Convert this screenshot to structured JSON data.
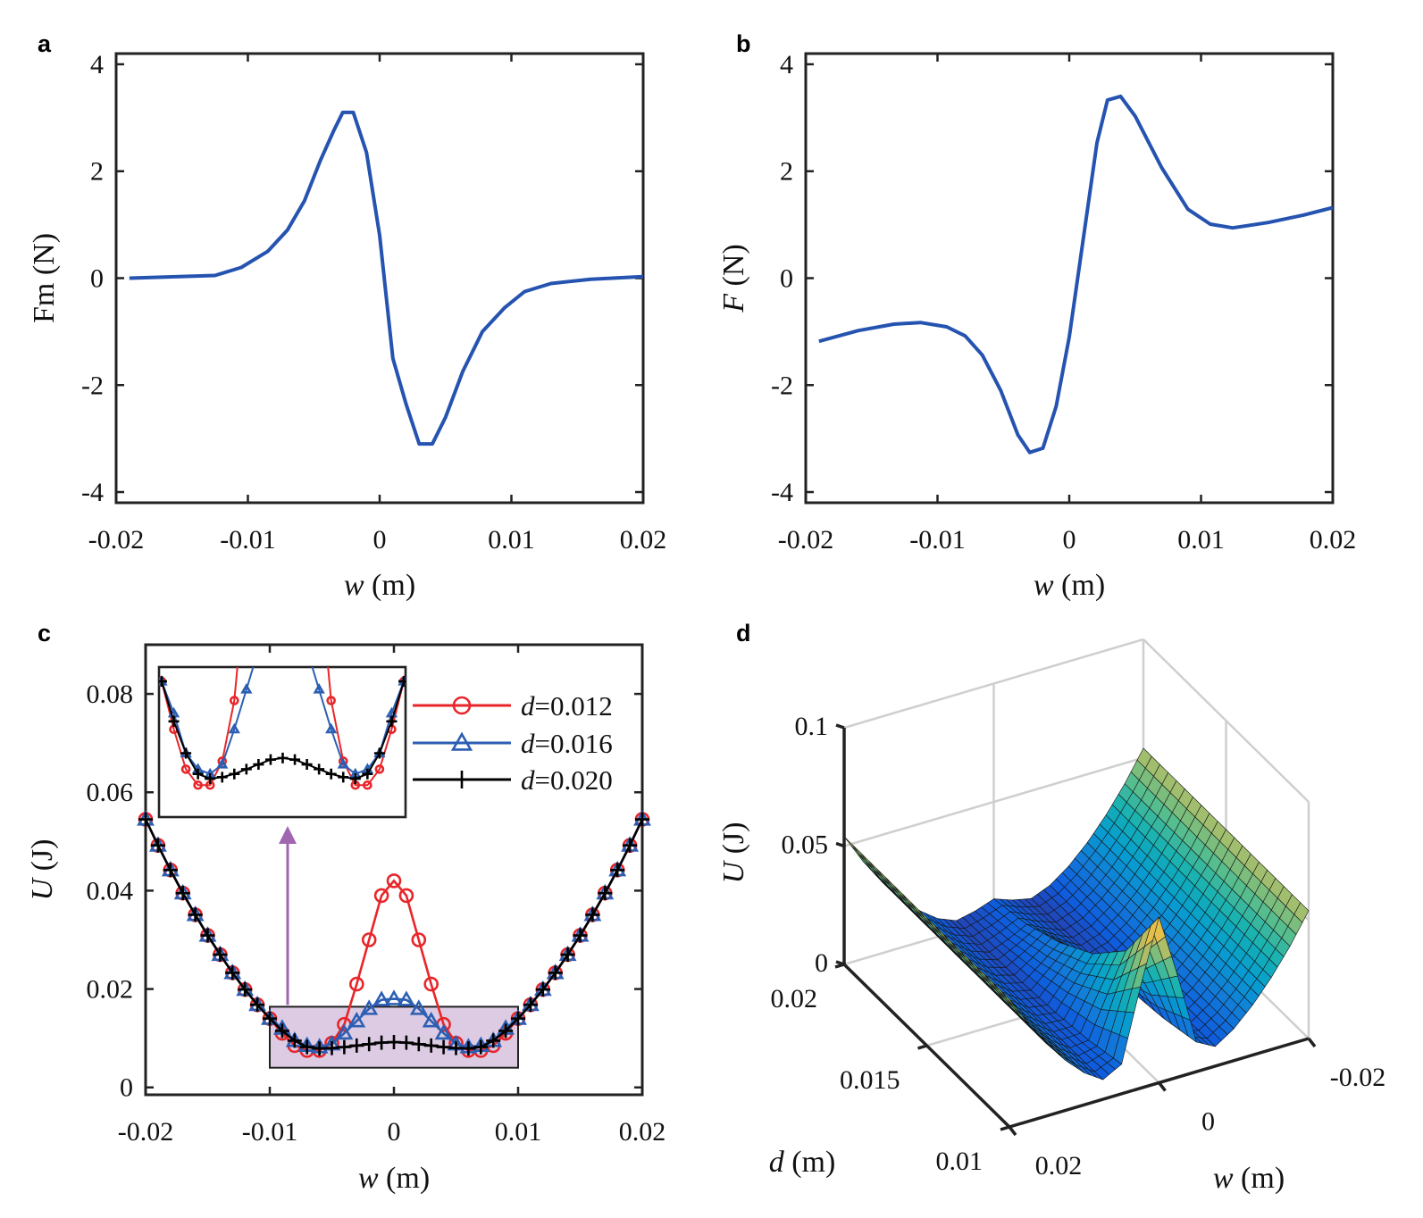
{
  "panel_letters": [
    "a",
    "b",
    "c",
    "d"
  ],
  "chart_data": [
    {
      "panel": "a",
      "type": "line",
      "xlabel": "w (m)",
      "ylabel": "Fm (N)",
      "xlim": [
        -0.02,
        0.02
      ],
      "ylim": [
        -4.2,
        4.2
      ],
      "grid": false,
      "xticks": [
        -0.02,
        -0.01,
        0,
        0.01,
        0.02
      ],
      "xtick_labels": [
        "-0.02",
        "-0.01",
        "0",
        "0.01",
        "0.02"
      ],
      "yticks": [
        -4,
        -2,
        0,
        2,
        4
      ],
      "ytick_labels": [
        "-4",
        "-2",
        "0",
        "2",
        "4"
      ],
      "series": [
        {
          "color": "#2553b0",
          "x": [
            -0.019,
            -0.0125,
            -0.0105,
            -0.0085,
            -0.007,
            -0.0057,
            -0.0045,
            -0.0035,
            -0.0028,
            -0.002,
            -0.001,
            0,
            0.001,
            0.002,
            0.003,
            0.004,
            0.005,
            0.0063,
            0.0078,
            0.0095,
            0.011,
            0.013,
            0.016,
            0.02
          ],
          "y": [
            0,
            0.05,
            0.2,
            0.5,
            0.9,
            1.45,
            2.2,
            2.75,
            3.1,
            3.1,
            2.35,
            0.8,
            -1.5,
            -2.35,
            -3.1,
            -3.1,
            -2.6,
            -1.75,
            -1.0,
            -0.55,
            -0.25,
            -0.1,
            -0.02,
            0.03
          ]
        }
      ]
    },
    {
      "panel": "b",
      "type": "line",
      "xlabel": "w (m)",
      "ylabel": "F (N)",
      "xlim": [
        -0.02,
        0.02
      ],
      "ylim": [
        -4.2,
        4.2
      ],
      "grid": false,
      "xticks": [
        -0.02,
        -0.01,
        0,
        0.01,
        0.02
      ],
      "xtick_labels": [
        "-0.02",
        "-0.01",
        "0",
        "0.01",
        "0.02"
      ],
      "yticks": [
        -4,
        -2,
        0,
        2,
        4
      ],
      "ytick_labels": [
        "-4",
        "-2",
        "0",
        "2",
        "4"
      ],
      "series": [
        {
          "color": "#2553b0",
          "x": [
            -0.019,
            -0.016,
            -0.0133,
            -0.0113,
            -0.0093,
            -0.0079,
            -0.0066,
            -0.0052,
            -0.0039,
            -0.003,
            -0.002,
            -0.001,
            0,
            0.001,
            0.0021,
            0.0029,
            0.0039,
            0.005,
            0.007,
            0.009,
            0.0107,
            0.0124,
            0.0151,
            0.0178,
            0.02
          ],
          "y": [
            -1.18,
            -0.98,
            -0.86,
            -0.83,
            -0.91,
            -1.08,
            -1.44,
            -2.1,
            -2.93,
            -3.26,
            -3.18,
            -2.4,
            -1.1,
            0.63,
            2.53,
            3.33,
            3.4,
            3.03,
            2.07,
            1.29,
            1.01,
            0.94,
            1.04,
            1.18,
            1.32
          ]
        }
      ]
    },
    {
      "panel": "c",
      "type": "line",
      "xlabel": "w (m)",
      "ylabel": "U (J)",
      "xlim": [
        -0.02,
        0.02
      ],
      "ylim": [
        -0.0015,
        0.09
      ],
      "grid": false,
      "xticks": [
        -0.02,
        -0.01,
        0,
        0.01,
        0.02
      ],
      "xtick_labels": [
        "-0.02",
        "-0.01",
        "0",
        "0.01",
        "0.02"
      ],
      "yticks": [
        0,
        0.02,
        0.04,
        0.06,
        0.08
      ],
      "ytick_labels": [
        "0",
        "0.02",
        "0.04",
        "0.06",
        "0.08"
      ],
      "legend_position": "top-right",
      "x": [
        -0.02,
        -0.019,
        -0.018,
        -0.017,
        -0.016,
        -0.015,
        -0.014,
        -0.013,
        -0.012,
        -0.011,
        -0.01,
        -0.009,
        -0.008,
        -0.007,
        -0.006,
        -0.005,
        -0.004,
        -0.003,
        -0.002,
        -0.001,
        0,
        0.001,
        0.002,
        0.003,
        0.004,
        0.005,
        0.006,
        0.007,
        0.008,
        0.009,
        0.01,
        0.011,
        0.012,
        0.013,
        0.014,
        0.015,
        0.016,
        0.017,
        0.018,
        0.019,
        0.02
      ],
      "series": [
        {
          "name": "d=0.012",
          "color": "#e8262a",
          "marker": "circle",
          "y": [
            0.0545,
            0.0492,
            0.0442,
            0.0395,
            0.0351,
            0.0309,
            0.027,
            0.0233,
            0.0199,
            0.0168,
            0.014,
            0.011,
            0.0085,
            0.0075,
            0.0075,
            0.009,
            0.0128,
            0.021,
            0.03,
            0.039,
            0.042,
            0.039,
            0.03,
            0.021,
            0.0128,
            0.009,
            0.0075,
            0.0075,
            0.0085,
            0.011,
            0.014,
            0.0168,
            0.0199,
            0.0233,
            0.027,
            0.0309,
            0.0351,
            0.0395,
            0.0442,
            0.0492,
            0.0545
          ]
        },
        {
          "name": "d=0.016",
          "color": "#2c5fb3",
          "marker": "triangle",
          "y": [
            0.0545,
            0.0492,
            0.0442,
            0.0395,
            0.0351,
            0.0309,
            0.027,
            0.0233,
            0.0199,
            0.0168,
            0.014,
            0.012,
            0.0095,
            0.0085,
            0.0082,
            0.0088,
            0.011,
            0.0135,
            0.016,
            0.0178,
            0.018,
            0.0178,
            0.016,
            0.0135,
            0.011,
            0.0088,
            0.0082,
            0.0085,
            0.0095,
            0.012,
            0.014,
            0.0168,
            0.0199,
            0.0233,
            0.027,
            0.0309,
            0.0351,
            0.0395,
            0.0442,
            0.0492,
            0.0545
          ]
        },
        {
          "name": "d=0.020",
          "color": "#000000",
          "marker": "plus",
          "y": [
            0.0545,
            0.0492,
            0.0442,
            0.0395,
            0.0351,
            0.0309,
            0.027,
            0.0233,
            0.0199,
            0.0168,
            0.014,
            0.0115,
            0.0095,
            0.0082,
            0.0079,
            0.008,
            0.0082,
            0.0085,
            0.0088,
            0.0091,
            0.0092,
            0.0091,
            0.0088,
            0.0085,
            0.0082,
            0.008,
            0.0079,
            0.0082,
            0.0095,
            0.0115,
            0.014,
            0.0168,
            0.0199,
            0.0233,
            0.027,
            0.0309,
            0.0351,
            0.0395,
            0.0442,
            0.0492,
            0.0545
          ]
        }
      ],
      "zoom_region": {
        "xlim": [
          -0.01,
          0.01
        ],
        "ylim": [
          0.004,
          0.0164
        ],
        "fill": "#dccbe3",
        "arrow_color": "#a066b0"
      },
      "inset": {
        "xlim": [
          -0.01,
          0.01
        ],
        "ylim": [
          0.0055,
          0.0149
        ]
      }
    },
    {
      "panel": "d",
      "type": "surface",
      "xlabel": "w (m)",
      "ylabel": "d (m)",
      "zlabel": "U (J)",
      "zlim": [
        0,
        0.1
      ],
      "grid": true,
      "colormap": "parula",
      "clim": [
        0,
        0.07
      ],
      "wticks": [
        0.02,
        0,
        -0.02
      ],
      "wtick_labels": [
        "0.02",
        "0",
        "-0.02"
      ],
      "dticks": [
        0.02,
        0.015,
        0.01
      ],
      "dtick_labels": [
        "0.02",
        "0.015",
        "0.01"
      ],
      "zticks": [
        0,
        0.05,
        0.1
      ],
      "ztick_labels": [
        "0",
        "0.05",
        "0.1"
      ],
      "w": [
        -0.02,
        -0.0175,
        -0.015,
        -0.0125,
        -0.01,
        -0.0075,
        -0.005,
        -0.0025,
        0,
        0.0025,
        0.005,
        0.0075,
        0.01,
        0.0125,
        0.015,
        0.0175,
        0.02
      ],
      "d": [
        0.01,
        0.012,
        0.014,
        0.016,
        0.018,
        0.02
      ],
      "U": [
        [
          0.054,
          0.0413,
          0.0304,
          0.0211,
          0.0135,
          0.0083,
          0.0125,
          0.0428,
          0.07,
          0.0428,
          0.0125,
          0.0083,
          0.0135,
          0.0211,
          0.0304,
          0.0413,
          0.054
        ],
        [
          0.054,
          0.0413,
          0.0304,
          0.0211,
          0.0135,
          0.008,
          0.0089,
          0.026,
          0.042,
          0.026,
          0.0089,
          0.008,
          0.0135,
          0.0211,
          0.0304,
          0.0413,
          0.054
        ],
        [
          0.054,
          0.0413,
          0.0304,
          0.0211,
          0.0135,
          0.0079,
          0.0069,
          0.017,
          0.027,
          0.017,
          0.0069,
          0.0079,
          0.0135,
          0.0211,
          0.0304,
          0.0413,
          0.054
        ],
        [
          0.054,
          0.0413,
          0.0304,
          0.0211,
          0.0135,
          0.0078,
          0.0057,
          0.0116,
          0.018,
          0.0116,
          0.0057,
          0.0078,
          0.0135,
          0.0211,
          0.0304,
          0.0413,
          0.054
        ],
        [
          0.054,
          0.0413,
          0.0304,
          0.0211,
          0.0135,
          0.0077,
          0.0049,
          0.008,
          0.012,
          0.008,
          0.0049,
          0.0077,
          0.0135,
          0.0211,
          0.0304,
          0.0413,
          0.054
        ],
        [
          0.054,
          0.0413,
          0.0304,
          0.0211,
          0.0135,
          0.0077,
          0.0045,
          0.0062,
          0.009,
          0.0062,
          0.0045,
          0.0077,
          0.0135,
          0.0211,
          0.0304,
          0.0413,
          0.054
        ]
      ]
    }
  ]
}
